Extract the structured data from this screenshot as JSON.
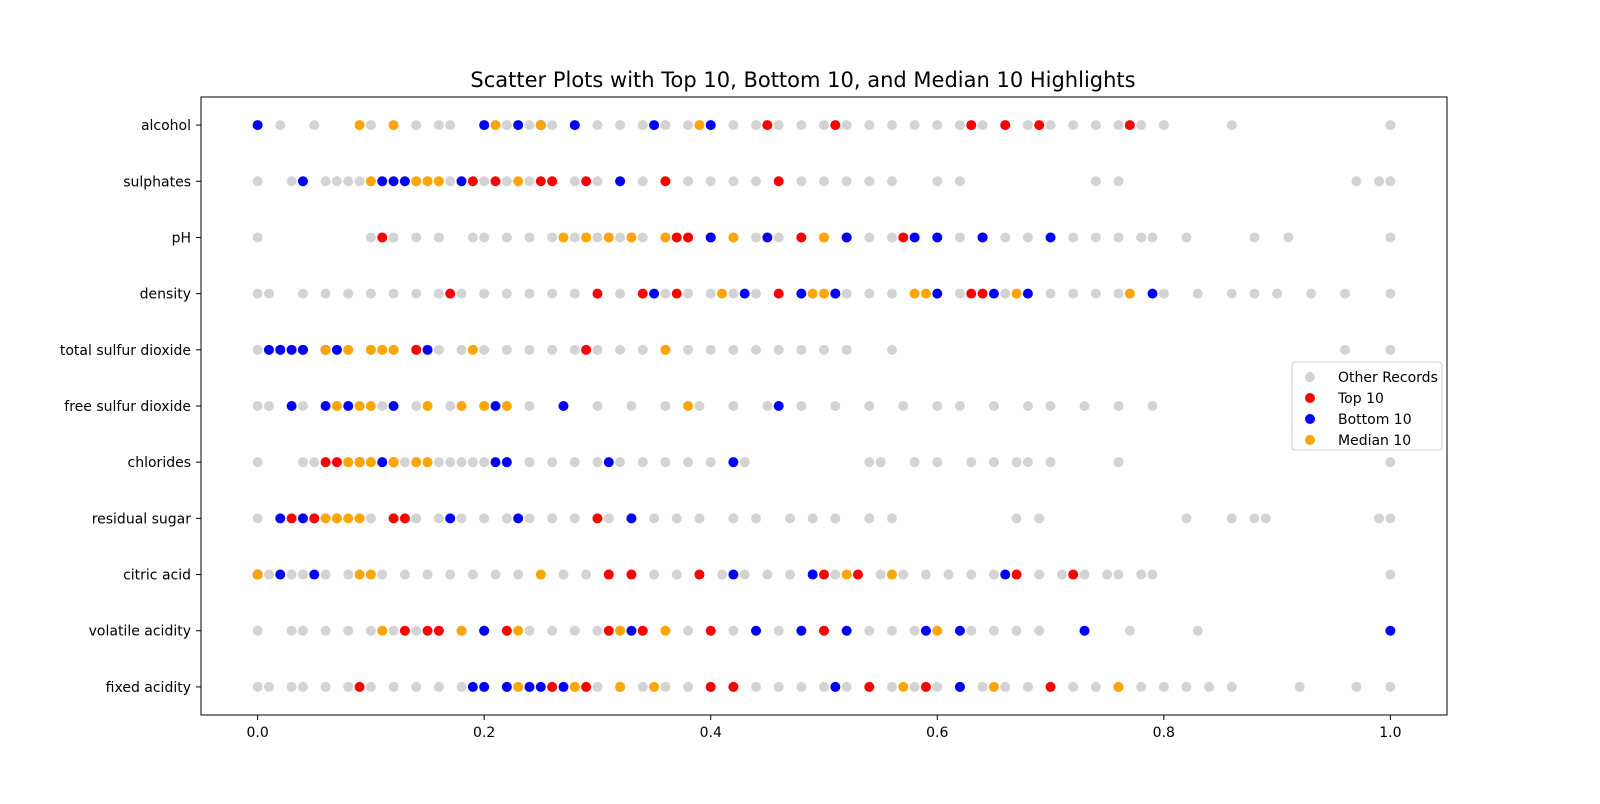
{
  "chart_data": {
    "type": "scatter",
    "title": "Scatter Plots with Top 10, Bottom 10, and Median 10 Highlights",
    "xlabel": "",
    "ylabel": "",
    "xlim": [
      -0.05,
      1.05
    ],
    "x_ticks": [
      0.0,
      0.2,
      0.4,
      0.6,
      0.8,
      1.0
    ],
    "x_tick_labels": [
      "0.0",
      "0.2",
      "0.4",
      "0.6",
      "0.8",
      "1.0"
    ],
    "categories": [
      "alcohol",
      "sulphates",
      "pH",
      "density",
      "total sulfur dioxide",
      "free sulfur dioxide",
      "chlorides",
      "residual sugar",
      "citric acid",
      "volatile acidity",
      "fixed acidity"
    ],
    "grid": false,
    "legend_position": "center-right",
    "legend": [
      {
        "key": "other",
        "label": "Other Records",
        "color": "#808080"
      },
      {
        "key": "top",
        "label": "Top 10",
        "color": "#ff0000"
      },
      {
        "key": "bottom",
        "label": "Bottom 10",
        "color": "#0000ff"
      },
      {
        "key": "median",
        "label": "Median 10",
        "color": "#ffa500"
      }
    ],
    "series": [
      {
        "category": "alcohol",
        "other": [
          0.02,
          0.05,
          0.1,
          0.12,
          0.14,
          0.16,
          0.17,
          0.2,
          0.22,
          0.24,
          0.26,
          0.28,
          0.3,
          0.32,
          0.34,
          0.36,
          0.38,
          0.4,
          0.42,
          0.44,
          0.46,
          0.48,
          0.5,
          0.52,
          0.54,
          0.56,
          0.58,
          0.6,
          0.62,
          0.64,
          0.66,
          0.68,
          0.7,
          0.72,
          0.74,
          0.76,
          0.78,
          0.8,
          0.86,
          1.0
        ],
        "top": [
          0.45,
          0.51,
          0.63,
          0.66,
          0.69,
          0.77
        ],
        "bottom": [
          0.0,
          0.2,
          0.23,
          0.25,
          0.28,
          0.35,
          0.4
        ],
        "median": [
          0.09,
          0.12,
          0.21,
          0.25,
          0.39
        ]
      },
      {
        "category": "sulphates",
        "other": [
          0.0,
          0.03,
          0.04,
          0.06,
          0.07,
          0.08,
          0.09,
          0.1,
          0.11,
          0.12,
          0.13,
          0.14,
          0.15,
          0.16,
          0.17,
          0.18,
          0.19,
          0.2,
          0.22,
          0.24,
          0.26,
          0.28,
          0.3,
          0.32,
          0.34,
          0.36,
          0.38,
          0.4,
          0.42,
          0.44,
          0.46,
          0.48,
          0.5,
          0.52,
          0.54,
          0.56,
          0.6,
          0.62,
          0.74,
          0.76,
          0.97,
          0.99,
          1.0
        ],
        "top": [
          0.19,
          0.21,
          0.25,
          0.26,
          0.29,
          0.36,
          0.46
        ],
        "bottom": [
          0.04,
          0.11,
          0.12,
          0.13,
          0.18,
          0.32
        ],
        "median": [
          0.1,
          0.14,
          0.15,
          0.16,
          0.23
        ]
      },
      {
        "category": "pH",
        "other": [
          0.0,
          0.1,
          0.12,
          0.14,
          0.16,
          0.19,
          0.2,
          0.22,
          0.24,
          0.26,
          0.28,
          0.3,
          0.32,
          0.34,
          0.36,
          0.38,
          0.4,
          0.42,
          0.44,
          0.46,
          0.48,
          0.5,
          0.52,
          0.54,
          0.56,
          0.58,
          0.6,
          0.62,
          0.64,
          0.66,
          0.68,
          0.7,
          0.72,
          0.74,
          0.76,
          0.78,
          0.79,
          0.82,
          0.88,
          0.91,
          1.0
        ],
        "top": [
          0.11,
          0.37,
          0.38,
          0.4,
          0.48,
          0.52,
          0.57,
          0.64
        ],
        "bottom": [
          0.4,
          0.45,
          0.52,
          0.58,
          0.6,
          0.64,
          0.7
        ],
        "median": [
          0.27,
          0.29,
          0.31,
          0.33,
          0.36,
          0.42,
          0.5
        ]
      },
      {
        "category": "density",
        "other": [
          0.0,
          0.01,
          0.04,
          0.06,
          0.08,
          0.1,
          0.12,
          0.14,
          0.16,
          0.18,
          0.2,
          0.22,
          0.24,
          0.26,
          0.28,
          0.3,
          0.32,
          0.34,
          0.36,
          0.38,
          0.4,
          0.42,
          0.44,
          0.46,
          0.48,
          0.5,
          0.52,
          0.54,
          0.56,
          0.58,
          0.6,
          0.62,
          0.64,
          0.66,
          0.68,
          0.7,
          0.72,
          0.74,
          0.76,
          0.8,
          0.83,
          0.86,
          0.88,
          0.9,
          0.93,
          0.96,
          1.0
        ],
        "top": [
          0.17,
          0.3,
          0.34,
          0.37,
          0.46,
          0.51,
          0.63,
          0.64
        ],
        "bottom": [
          0.35,
          0.43,
          0.48,
          0.51,
          0.6,
          0.65,
          0.68,
          0.79
        ],
        "median": [
          0.41,
          0.49,
          0.5,
          0.58,
          0.59,
          0.67,
          0.77
        ]
      },
      {
        "category": "total sulfur dioxide",
        "other": [
          0.0,
          0.02,
          0.04,
          0.06,
          0.08,
          0.1,
          0.12,
          0.14,
          0.16,
          0.18,
          0.2,
          0.22,
          0.24,
          0.26,
          0.28,
          0.3,
          0.32,
          0.34,
          0.36,
          0.38,
          0.4,
          0.42,
          0.44,
          0.46,
          0.48,
          0.5,
          0.52,
          0.56,
          0.96,
          1.0
        ],
        "top": [
          0.04,
          0.14,
          0.29
        ],
        "bottom": [
          0.01,
          0.02,
          0.03,
          0.04,
          0.06,
          0.07,
          0.15
        ],
        "median": [
          0.06,
          0.08,
          0.1,
          0.11,
          0.12,
          0.19,
          0.36
        ]
      },
      {
        "category": "free sulfur dioxide",
        "other": [
          0.0,
          0.01,
          0.04,
          0.07,
          0.11,
          0.14,
          0.17,
          0.2,
          0.24,
          0.27,
          0.3,
          0.33,
          0.36,
          0.39,
          0.42,
          0.45,
          0.48,
          0.51,
          0.54,
          0.57,
          0.6,
          0.62,
          0.65,
          0.68,
          0.7,
          0.73,
          0.76,
          0.79
        ],
        "top": [],
        "bottom": [
          0.03,
          0.06,
          0.08,
          0.12,
          0.21,
          0.27,
          0.46
        ],
        "median": [
          0.07,
          0.09,
          0.1,
          0.15,
          0.18,
          0.2,
          0.22,
          0.38
        ]
      },
      {
        "category": "chlorides",
        "other": [
          0.0,
          0.04,
          0.05,
          0.06,
          0.07,
          0.08,
          0.09,
          0.1,
          0.11,
          0.12,
          0.13,
          0.14,
          0.15,
          0.16,
          0.17,
          0.18,
          0.19,
          0.2,
          0.22,
          0.24,
          0.26,
          0.28,
          0.3,
          0.32,
          0.34,
          0.36,
          0.38,
          0.4,
          0.43,
          0.54,
          0.55,
          0.58,
          0.6,
          0.63,
          0.65,
          0.67,
          0.68,
          0.7,
          0.76,
          1.0
        ],
        "top": [
          0.06,
          0.07,
          0.12
        ],
        "bottom": [
          0.09,
          0.11,
          0.21,
          0.22,
          0.31,
          0.42
        ],
        "median": [
          0.08,
          0.09,
          0.1,
          0.12,
          0.14,
          0.15
        ]
      },
      {
        "category": "residual sugar",
        "other": [
          0.0,
          0.03,
          0.05,
          0.07,
          0.09,
          0.1,
          0.12,
          0.14,
          0.16,
          0.18,
          0.2,
          0.22,
          0.24,
          0.26,
          0.28,
          0.31,
          0.33,
          0.35,
          0.37,
          0.39,
          0.42,
          0.44,
          0.47,
          0.49,
          0.51,
          0.54,
          0.56,
          0.67,
          0.69,
          0.82,
          0.86,
          0.88,
          0.89,
          0.99,
          1.0
        ],
        "top": [
          0.03,
          0.05,
          0.12,
          0.13,
          0.3
        ],
        "bottom": [
          0.02,
          0.04,
          0.17,
          0.23,
          0.33
        ],
        "median": [
          0.06,
          0.07,
          0.08,
          0.09
        ]
      },
      {
        "category": "citric acid",
        "other": [
          0.0,
          0.01,
          0.03,
          0.04,
          0.06,
          0.08,
          0.1,
          0.11,
          0.13,
          0.15,
          0.17,
          0.19,
          0.21,
          0.23,
          0.25,
          0.27,
          0.29,
          0.31,
          0.33,
          0.35,
          0.37,
          0.39,
          0.41,
          0.43,
          0.45,
          0.47,
          0.49,
          0.51,
          0.53,
          0.55,
          0.57,
          0.59,
          0.61,
          0.63,
          0.65,
          0.67,
          0.69,
          0.71,
          0.73,
          0.75,
          0.76,
          0.78,
          0.79,
          1.0
        ],
        "top": [
          0.31,
          0.33,
          0.39,
          0.5,
          0.53,
          0.67,
          0.72
        ],
        "bottom": [
          0.0,
          0.02,
          0.05,
          0.42,
          0.49,
          0.66
        ],
        "median": [
          0.0,
          0.09,
          0.1,
          0.25,
          0.52,
          0.56
        ]
      },
      {
        "category": "volatile acidity",
        "other": [
          0.0,
          0.03,
          0.04,
          0.06,
          0.08,
          0.1,
          0.12,
          0.14,
          0.16,
          0.18,
          0.2,
          0.22,
          0.24,
          0.26,
          0.28,
          0.3,
          0.32,
          0.34,
          0.36,
          0.38,
          0.4,
          0.42,
          0.44,
          0.46,
          0.48,
          0.5,
          0.52,
          0.54,
          0.56,
          0.58,
          0.6,
          0.63,
          0.65,
          0.67,
          0.69,
          0.73,
          0.77,
          0.83
        ],
        "top": [
          0.13,
          0.15,
          0.16,
          0.2,
          0.22,
          0.31,
          0.34,
          0.4,
          0.5
        ],
        "bottom": [
          0.2,
          0.33,
          0.44,
          0.48,
          0.52,
          0.59,
          0.62,
          0.73,
          1.0
        ],
        "median": [
          0.11,
          0.18,
          0.23,
          0.32,
          0.36,
          0.6
        ]
      },
      {
        "category": "fixed acidity",
        "other": [
          0.0,
          0.01,
          0.03,
          0.04,
          0.06,
          0.08,
          0.1,
          0.12,
          0.14,
          0.16,
          0.18,
          0.2,
          0.22,
          0.24,
          0.26,
          0.28,
          0.3,
          0.32,
          0.34,
          0.36,
          0.38,
          0.4,
          0.42,
          0.44,
          0.46,
          0.48,
          0.5,
          0.52,
          0.54,
          0.56,
          0.58,
          0.6,
          0.62,
          0.64,
          0.66,
          0.68,
          0.7,
          0.72,
          0.74,
          0.76,
          0.78,
          0.8,
          0.82,
          0.84,
          0.86,
          0.92,
          0.97,
          1.0
        ],
        "top": [
          0.09,
          0.26,
          0.29,
          0.4,
          0.42,
          0.54,
          0.59,
          0.7
        ],
        "bottom": [
          0.19,
          0.2,
          0.22,
          0.24,
          0.25,
          0.27,
          0.51,
          0.62
        ],
        "median": [
          0.23,
          0.28,
          0.32,
          0.35,
          0.57,
          0.65,
          0.76
        ]
      }
    ]
  }
}
